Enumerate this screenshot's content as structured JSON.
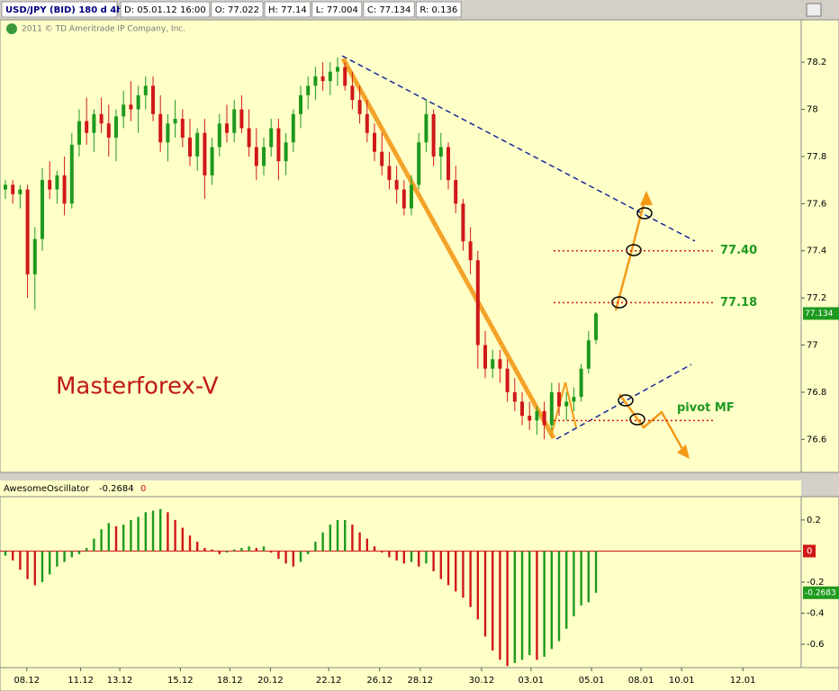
{
  "header": {
    "symbol": "USD/JPY (BID) 180 d 4h",
    "items": [
      "D: 05.01.12 16:00",
      "O: 77.022",
      "H: 77.14",
      "L: 77.004",
      "C: 77.134",
      "R: 0.136"
    ],
    "copyright": "2011 © TD Ameritrade IP Company, Inc.",
    "watermark": "Masterforex-V"
  },
  "chart_data": [
    {
      "type": "candlestick",
      "up_color": "#1e9a1e",
      "down_color": "#d01818",
      "xlim": [
        -0.73,
        107.8
      ],
      "ylim": [
        76.46,
        78.38
      ],
      "yticks": [
        76.6,
        76.8,
        77,
        77.2,
        77.4,
        77.6,
        77.8,
        78,
        78.2
      ],
      "last_price": 77.134,
      "levels": [
        {
          "value": 77.4,
          "label": "77.40"
        },
        {
          "value": 77.18,
          "label": "77.18"
        },
        {
          "value": 76.68,
          "label": "pivot MF"
        }
      ],
      "ohlc": [
        [
          77.66,
          77.7,
          77.62,
          77.68
        ],
        [
          77.68,
          77.7,
          77.6,
          77.64
        ],
        [
          77.64,
          77.68,
          77.58,
          77.66
        ],
        [
          77.66,
          77.68,
          77.2,
          77.3
        ],
        [
          77.3,
          77.5,
          77.15,
          77.45
        ],
        [
          77.45,
          77.75,
          77.4,
          77.7
        ],
        [
          77.7,
          77.78,
          77.62,
          77.66
        ],
        [
          77.66,
          77.74,
          77.6,
          77.72
        ],
        [
          77.72,
          77.8,
          77.55,
          77.6
        ],
        [
          77.6,
          77.9,
          77.58,
          77.85
        ],
        [
          77.85,
          78.0,
          77.8,
          77.95
        ],
        [
          77.95,
          78.05,
          77.85,
          77.9
        ],
        [
          77.9,
          78.0,
          77.82,
          77.98
        ],
        [
          77.98,
          78.05,
          77.9,
          77.94
        ],
        [
          77.94,
          78.02,
          77.8,
          77.88
        ],
        [
          77.88,
          78.0,
          77.78,
          77.97
        ],
        [
          77.97,
          78.08,
          77.92,
          78.02
        ],
        [
          78.02,
          78.12,
          77.95,
          78.0
        ],
        [
          78.0,
          78.1,
          77.9,
          78.06
        ],
        [
          78.06,
          78.14,
          78.0,
          78.1
        ],
        [
          78.1,
          78.14,
          77.95,
          77.98
        ],
        [
          77.98,
          78.06,
          77.82,
          77.86
        ],
        [
          77.86,
          77.98,
          77.78,
          77.94
        ],
        [
          77.94,
          78.04,
          77.88,
          77.96
        ],
        [
          77.96,
          78.0,
          77.84,
          77.88
        ],
        [
          77.88,
          77.96,
          77.76,
          77.8
        ],
        [
          77.8,
          77.92,
          77.74,
          77.9
        ],
        [
          77.9,
          77.96,
          77.62,
          77.72
        ],
        [
          77.72,
          77.88,
          77.68,
          77.84
        ],
        [
          77.84,
          77.98,
          77.8,
          77.94
        ],
        [
          77.94,
          78.02,
          77.86,
          77.9
        ],
        [
          77.9,
          78.04,
          77.86,
          78.0
        ],
        [
          78.0,
          78.06,
          77.9,
          77.92
        ],
        [
          77.92,
          78.0,
          77.8,
          77.84
        ],
        [
          77.84,
          77.92,
          77.7,
          77.76
        ],
        [
          77.76,
          77.88,
          77.72,
          77.84
        ],
        [
          77.84,
          77.96,
          77.8,
          77.92
        ],
        [
          77.92,
          77.96,
          77.7,
          77.78
        ],
        [
          77.78,
          77.9,
          77.72,
          77.86
        ],
        [
          77.86,
          78.0,
          77.82,
          77.98
        ],
        [
          77.98,
          78.1,
          77.92,
          78.06
        ],
        [
          78.06,
          78.14,
          78.0,
          78.1
        ],
        [
          78.1,
          78.18,
          78.04,
          78.14
        ],
        [
          78.14,
          78.2,
          78.08,
          78.12
        ],
        [
          78.12,
          78.2,
          78.06,
          78.16
        ],
        [
          78.16,
          78.22,
          78.1,
          78.18
        ],
        [
          78.18,
          78.2,
          78.08,
          78.1
        ],
        [
          78.1,
          78.16,
          78.0,
          78.04
        ],
        [
          78.04,
          78.1,
          77.94,
          77.98
        ],
        [
          77.98,
          78.04,
          77.86,
          77.9
        ],
        [
          77.9,
          77.94,
          77.78,
          77.82
        ],
        [
          77.82,
          77.9,
          77.72,
          77.76
        ],
        [
          77.76,
          77.82,
          77.66,
          77.7
        ],
        [
          77.7,
          77.76,
          77.6,
          77.66
        ],
        [
          77.66,
          77.7,
          77.55,
          77.58
        ],
        [
          77.58,
          77.72,
          77.55,
          77.68
        ],
        [
          77.68,
          77.9,
          77.66,
          77.86
        ],
        [
          77.86,
          78.04,
          77.82,
          77.98
        ],
        [
          77.98,
          78.0,
          77.76,
          77.8
        ],
        [
          77.8,
          77.9,
          77.7,
          77.84
        ],
        [
          77.84,
          77.86,
          77.66,
          77.7
        ],
        [
          77.7,
          77.76,
          77.56,
          77.6
        ],
        [
          77.6,
          77.62,
          77.4,
          77.44
        ],
        [
          77.44,
          77.5,
          77.3,
          77.36
        ],
        [
          77.36,
          77.4,
          76.9,
          77.0
        ],
        [
          77.0,
          77.06,
          76.86,
          76.9
        ],
        [
          76.9,
          76.98,
          76.86,
          76.94
        ],
        [
          76.94,
          76.98,
          76.84,
          76.9
        ],
        [
          76.9,
          76.94,
          76.76,
          76.8
        ],
        [
          76.8,
          76.86,
          76.72,
          76.76
        ],
        [
          76.76,
          76.8,
          76.66,
          76.7
        ],
        [
          76.7,
          76.76,
          76.64,
          76.68
        ],
        [
          76.68,
          76.74,
          76.62,
          76.72
        ],
        [
          76.72,
          76.76,
          76.6,
          76.66
        ],
        [
          76.66,
          76.84,
          76.64,
          76.8
        ],
        [
          76.8,
          76.84,
          76.7,
          76.74
        ],
        [
          76.74,
          76.8,
          76.68,
          76.76
        ],
        [
          76.76,
          76.82,
          76.72,
          76.78
        ],
        [
          76.78,
          76.92,
          76.76,
          76.9
        ],
        [
          76.9,
          77.06,
          76.88,
          77.02
        ],
        [
          77.022,
          77.14,
          77.004,
          77.134
        ]
      ]
    },
    {
      "type": "bar",
      "title": "AwesomeOscillator",
      "header_values": [
        "-0.2684",
        "0"
      ],
      "up_color": "#1e9a1e",
      "down_color": "#d01818",
      "xlim": [
        -0.73,
        107.8
      ],
      "ylim": [
        -0.75,
        0.35
      ],
      "yticks": [
        0.2,
        0,
        -0.2,
        -0.4,
        -0.6
      ],
      "last_value": -0.2683,
      "xticks": [
        {
          "value": 2.9,
          "label": "08.12"
        },
        {
          "value": 10.2,
          "label": "11.12"
        },
        {
          "value": 15.5,
          "label": "13.12"
        },
        {
          "value": 23.7,
          "label": "15.12"
        },
        {
          "value": 30.4,
          "label": "18.12"
        },
        {
          "value": 35.9,
          "label": "20.12"
        },
        {
          "value": 43.8,
          "label": "22.12"
        },
        {
          "value": 50.7,
          "label": "26.12"
        },
        {
          "value": 56.2,
          "label": "28.12"
        },
        {
          "value": 64.5,
          "label": "30.12"
        },
        {
          "value": 71.2,
          "label": "03.01"
        },
        {
          "value": 79.4,
          "label": "05.01"
        },
        {
          "value": 86.1,
          "label": "08.01"
        },
        {
          "value": 91.6,
          "label": "10.01"
        },
        {
          "value": 99.9,
          "label": "12.01"
        }
      ],
      "values": [
        -0.03,
        -0.06,
        -0.12,
        -0.18,
        -0.22,
        -0.2,
        -0.15,
        -0.1,
        -0.07,
        -0.04,
        -0.02,
        0.02,
        0.08,
        0.14,
        0.18,
        0.16,
        0.17,
        0.2,
        0.22,
        0.25,
        0.26,
        0.27,
        0.25,
        0.2,
        0.15,
        0.1,
        0.06,
        0.02,
        0.01,
        -0.02,
        -0.01,
        0.01,
        0.02,
        0.03,
        0.02,
        0.03,
        -0.01,
        -0.05,
        -0.08,
        -0.1,
        -0.07,
        -0.02,
        0.06,
        0.12,
        0.17,
        0.2,
        0.2,
        0.17,
        0.12,
        0.08,
        0.03,
        -0.01,
        -0.04,
        -0.06,
        -0.08,
        -0.07,
        -0.1,
        -0.08,
        -0.13,
        -0.18,
        -0.22,
        -0.26,
        -0.3,
        -0.36,
        -0.44,
        -0.55,
        -0.64,
        -0.7,
        -0.74,
        -0.72,
        -0.7,
        -0.67,
        -0.7,
        -0.68,
        -0.63,
        -0.58,
        -0.5,
        -0.42,
        -0.35,
        -0.33,
        -0.2684
      ]
    }
  ]
}
